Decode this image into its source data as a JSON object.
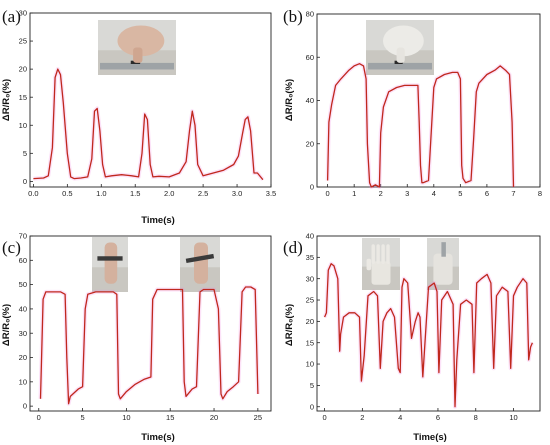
{
  "figure": {
    "panels": [
      "(a)",
      "(b)",
      "(c)",
      "(d)"
    ]
  },
  "colors": {
    "line": "#c0281e",
    "halo": "#f07ae0",
    "axis": "#222222"
  },
  "chart_data": [
    {
      "id": "a",
      "type": "line",
      "panel_label": "(a)",
      "xlabel": "Time(s)",
      "ylabel": "ΔR/R₀(%)",
      "xlim": [
        -0.05,
        3.5
      ],
      "ylim": [
        -1,
        30
      ],
      "xticks": [
        0.0,
        0.5,
        1.0,
        1.5,
        2.0,
        2.5,
        3.0,
        3.5
      ],
      "xtick_labels": [
        "0.0",
        "0.5",
        "1.0",
        "1.5",
        "2.0",
        "2.5",
        "3.0",
        "3.5"
      ],
      "yticks": [
        0,
        5,
        10,
        15,
        20,
        25,
        30
      ],
      "ytick_labels": [
        "0",
        "5",
        "10",
        "15",
        "20",
        "25",
        "30"
      ],
      "inset_photos": [
        "photo-finger-press"
      ],
      "series": [
        {
          "x": [
            0.0,
            0.15,
            0.22,
            0.28,
            0.32,
            0.36,
            0.4,
            0.44,
            0.5,
            0.55,
            0.6,
            0.7,
            0.8,
            0.86,
            0.9,
            0.94,
            0.98,
            1.02,
            1.06,
            1.15,
            1.3,
            1.45,
            1.55,
            1.6,
            1.64,
            1.68,
            1.72,
            1.76,
            1.85,
            2.0,
            2.15,
            2.25,
            2.3,
            2.34,
            2.38,
            2.42,
            2.5,
            2.65,
            2.8,
            2.95,
            3.02,
            3.08,
            3.12,
            3.16,
            3.2,
            3.25,
            3.3,
            3.38
          ],
          "y": [
            0.5,
            0.6,
            1.0,
            6.0,
            18.5,
            20.0,
            19.0,
            14.0,
            5.0,
            0.8,
            0.5,
            0.6,
            0.8,
            4.0,
            12.5,
            13.0,
            9.0,
            3.0,
            0.8,
            1.0,
            1.2,
            1.0,
            0.8,
            5.0,
            12.0,
            11.0,
            3.0,
            0.8,
            0.9,
            0.8,
            1.5,
            3.5,
            9.0,
            12.5,
            10.0,
            3.0,
            1.0,
            1.5,
            2.0,
            3.0,
            4.5,
            8.5,
            11.0,
            11.5,
            9.0,
            1.5,
            1.5,
            0.3
          ]
        }
      ]
    },
    {
      "id": "b",
      "type": "line",
      "panel_label": "(b)",
      "xlabel": "",
      "ylabel": "ΔR/R₀(%)",
      "xlim": [
        -0.4,
        8
      ],
      "ylim": [
        0,
        80
      ],
      "xticks": [
        0,
        1,
        2,
        3,
        4,
        5,
        6,
        7,
        8
      ],
      "xtick_labels": [
        "0",
        "1",
        "2",
        "3",
        "4",
        "5",
        "6",
        "7",
        "8"
      ],
      "yticks": [
        0,
        20,
        40,
        60,
        80
      ],
      "ytick_labels": [
        "0",
        "20",
        "40",
        "60",
        "80"
      ],
      "inset_photos": [
        "photo-glove-press"
      ],
      "series": [
        {
          "x": [
            0.0,
            0.05,
            0.15,
            0.3,
            0.5,
            0.8,
            1.0,
            1.2,
            1.35,
            1.45,
            1.5,
            1.58,
            1.65,
            1.8,
            1.95,
            2.0,
            2.1,
            2.3,
            2.6,
            2.9,
            3.2,
            3.4,
            3.45,
            3.5,
            3.55,
            3.6,
            3.8,
            3.9,
            4.0,
            4.1,
            4.4,
            4.7,
            4.9,
            5.0,
            5.05,
            5.1,
            5.2,
            5.4,
            5.5,
            5.6,
            5.7,
            6.0,
            6.3,
            6.5,
            6.7,
            6.85,
            6.95,
            7.0
          ],
          "y": [
            3,
            30,
            38,
            47,
            50,
            54,
            56,
            57,
            56,
            50,
            20,
            2,
            0,
            1,
            0,
            25,
            37,
            44,
            46,
            47,
            47,
            47,
            30,
            10,
            2,
            2,
            3,
            25,
            46,
            50,
            52,
            53,
            53,
            50,
            10,
            4,
            2,
            3,
            22,
            44,
            48,
            52,
            54,
            56,
            54,
            52,
            30,
            0
          ]
        }
      ]
    },
    {
      "id": "c",
      "type": "line",
      "panel_label": "(c)",
      "xlabel": "Time(s)",
      "ylabel": "ΔR/R₀(%)",
      "xlim": [
        -1,
        26.5
      ],
      "ylim": [
        -2,
        70
      ],
      "xticks": [
        0,
        5,
        10,
        15,
        20,
        25
      ],
      "xtick_labels": [
        "0",
        "5",
        "10",
        "15",
        "20",
        "25"
      ],
      "yticks": [
        0,
        10,
        20,
        30,
        40,
        50,
        60,
        70
      ],
      "ytick_labels": [
        "0",
        "10",
        "20",
        "30",
        "40",
        "50",
        "60",
        "70"
      ],
      "inset_photos": [
        "photo-finger-bend-small",
        "photo-finger-bend-large"
      ],
      "series": [
        {
          "x": [
            0.2,
            0.5,
            0.8,
            1.5,
            2.5,
            3.0,
            3.2,
            3.4,
            3.6,
            4.5,
            5.0,
            5.3,
            5.6,
            6.5,
            7.5,
            8.5,
            8.9,
            9.1,
            9.3,
            10.0,
            11.0,
            12.0,
            12.8,
            13.0,
            13.5,
            15.0,
            16.0,
            16.4,
            16.6,
            16.8,
            17.5,
            18.0,
            18.4,
            18.8,
            19.5,
            20.0,
            20.5,
            20.8,
            21.0,
            21.5,
            22.2,
            22.8,
            23.2,
            23.6,
            24.2,
            24.7,
            25.0
          ],
          "y": [
            3,
            44,
            47,
            47,
            47,
            46,
            20,
            1,
            4,
            7,
            8,
            40,
            46,
            47,
            47,
            47,
            46,
            5,
            3,
            6,
            9,
            11,
            12,
            44,
            48,
            48,
            48,
            48,
            10,
            4,
            7,
            8,
            47,
            48,
            48,
            48,
            40,
            5,
            3,
            6,
            8,
            10,
            47,
            49,
            49,
            48,
            5
          ]
        }
      ]
    },
    {
      "id": "d",
      "type": "line",
      "panel_label": "(d)",
      "xlabel": "Time(s)",
      "ylabel": "ΔR/R₀(%)",
      "xlim": [
        -0.4,
        11.4
      ],
      "ylim": [
        -1,
        40
      ],
      "xticks": [
        0,
        2,
        4,
        6,
        8,
        10
      ],
      "xtick_labels": [
        "0",
        "2",
        "4",
        "6",
        "8",
        "10"
      ],
      "yticks": [
        0,
        5,
        10,
        15,
        20,
        25,
        30,
        35,
        40
      ],
      "ytick_labels": [
        "0",
        "5",
        "10",
        "15",
        "20",
        "25",
        "30",
        "35",
        "40"
      ],
      "inset_photos": [
        "photo-hand-open",
        "photo-hand-fist"
      ],
      "series": [
        {
          "x": [
            0.0,
            0.1,
            0.2,
            0.35,
            0.5,
            0.7,
            0.8,
            0.85,
            1.0,
            1.3,
            1.6,
            1.85,
            1.95,
            2.1,
            2.3,
            2.6,
            2.8,
            2.95,
            3.1,
            3.3,
            3.5,
            3.7,
            3.9,
            4.0,
            4.1,
            4.2,
            4.4,
            4.6,
            4.8,
            4.95,
            5.05,
            5.2,
            5.5,
            5.8,
            5.95,
            6.05,
            6.2,
            6.5,
            6.8,
            6.9,
            7.0,
            7.2,
            7.5,
            7.8,
            7.9,
            8.05,
            8.3,
            8.6,
            8.8,
            8.95,
            9.1,
            9.4,
            9.7,
            9.85,
            10.0,
            10.2,
            10.5,
            10.7,
            10.8,
            10.9,
            11.0
          ],
          "y": [
            21,
            22,
            32,
            33.5,
            33,
            30,
            13,
            17,
            21,
            22,
            22,
            21,
            6,
            12,
            26,
            27,
            26,
            9,
            20,
            22,
            23,
            21,
            9,
            8,
            28,
            30,
            29,
            16,
            20,
            22,
            21,
            7,
            28,
            29,
            27,
            8,
            25,
            27,
            24,
            0,
            11,
            24,
            25,
            24,
            8,
            29,
            30,
            31,
            29,
            9,
            26,
            28,
            27,
            9,
            26,
            28,
            30,
            29,
            11,
            14,
            15
          ]
        }
      ]
    }
  ]
}
